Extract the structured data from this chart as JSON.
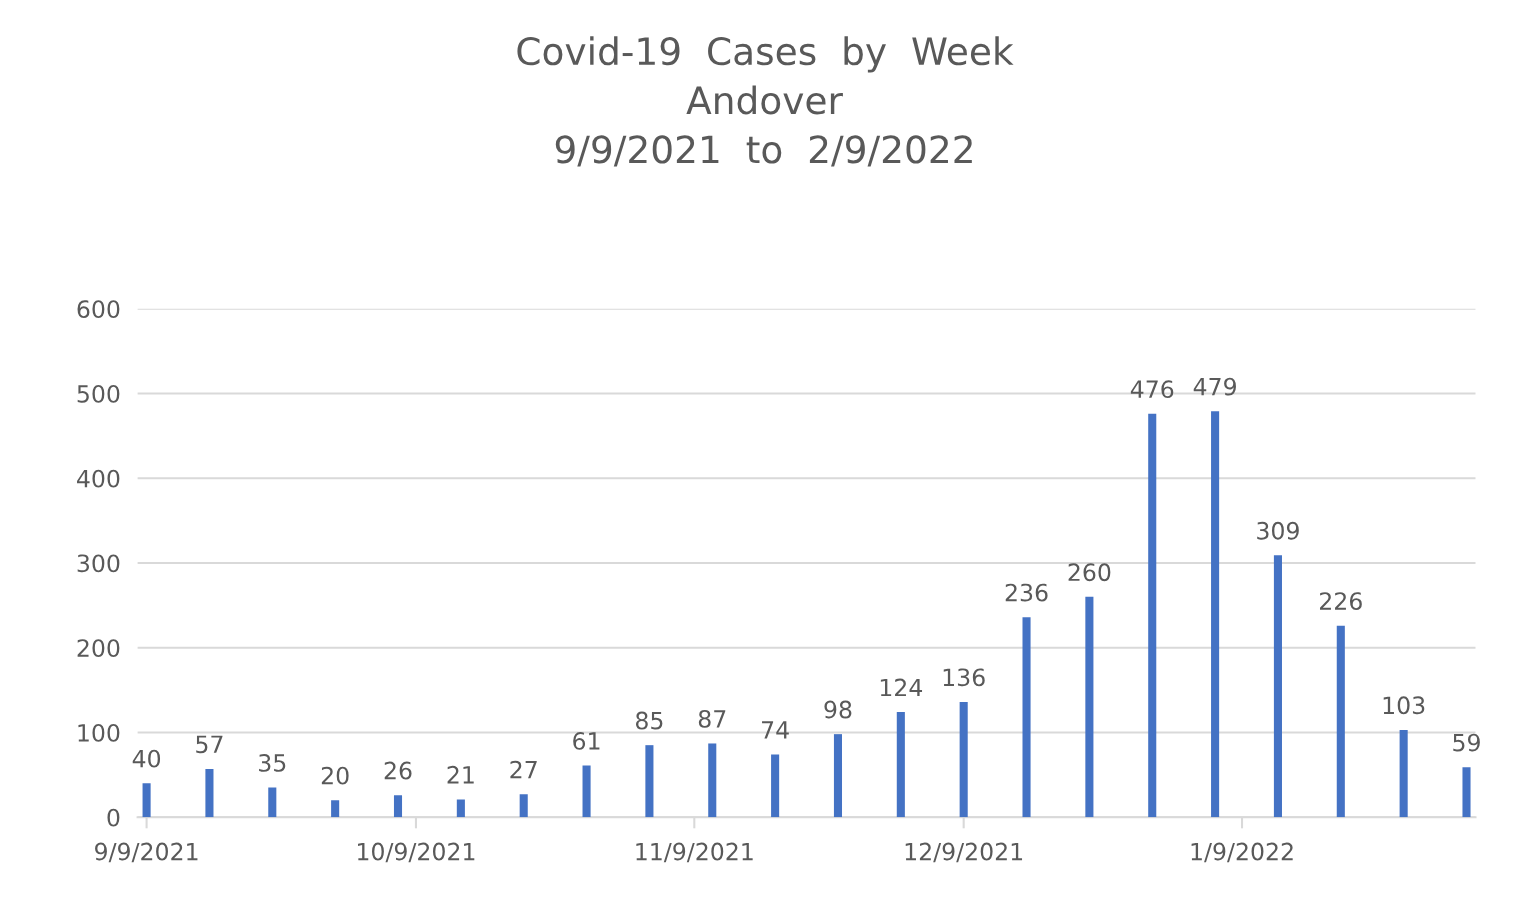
{
  "chart_data": {
    "type": "bar",
    "title": "Covid-19  Cases  by  Week\nAndover\n9/9/2021  to  2/9/2022",
    "x": [
      "2021-09-09",
      "2021-09-16",
      "2021-09-23",
      "2021-09-30",
      "2021-10-07",
      "2021-10-14",
      "2021-10-21",
      "2021-10-28",
      "2021-11-04",
      "2021-11-11",
      "2021-11-18",
      "2021-11-25",
      "2021-12-02",
      "2021-12-09",
      "2021-12-16",
      "2021-12-23",
      "2021-12-30",
      "2022-01-06",
      "2022-01-13",
      "2022-01-20",
      "2022-01-27",
      "2022-02-03"
    ],
    "values": [
      40,
      57,
      35,
      20,
      26,
      21,
      27,
      61,
      85,
      87,
      74,
      98,
      124,
      136,
      236,
      260,
      476,
      479,
      309,
      226,
      103,
      59
    ],
    "color": "#4472c4",
    "xlim": [
      "2021-09-08",
      "2022-02-04"
    ],
    "xticks": [
      {
        "value": "2021-09-09",
        "label": "9/9/2021"
      },
      {
        "value": "2021-10-09",
        "label": "10/9/2021"
      },
      {
        "value": "2021-11-09",
        "label": "11/9/2021"
      },
      {
        "value": "2021-12-09",
        "label": "12/9/2021"
      },
      {
        "value": "2022-01-09",
        "label": "1/9/2022"
      }
    ],
    "ylim": [
      0,
      600
    ],
    "yticks": [
      0,
      100,
      200,
      300,
      400,
      500,
      600
    ],
    "grid": "y",
    "data_labels": true
  }
}
